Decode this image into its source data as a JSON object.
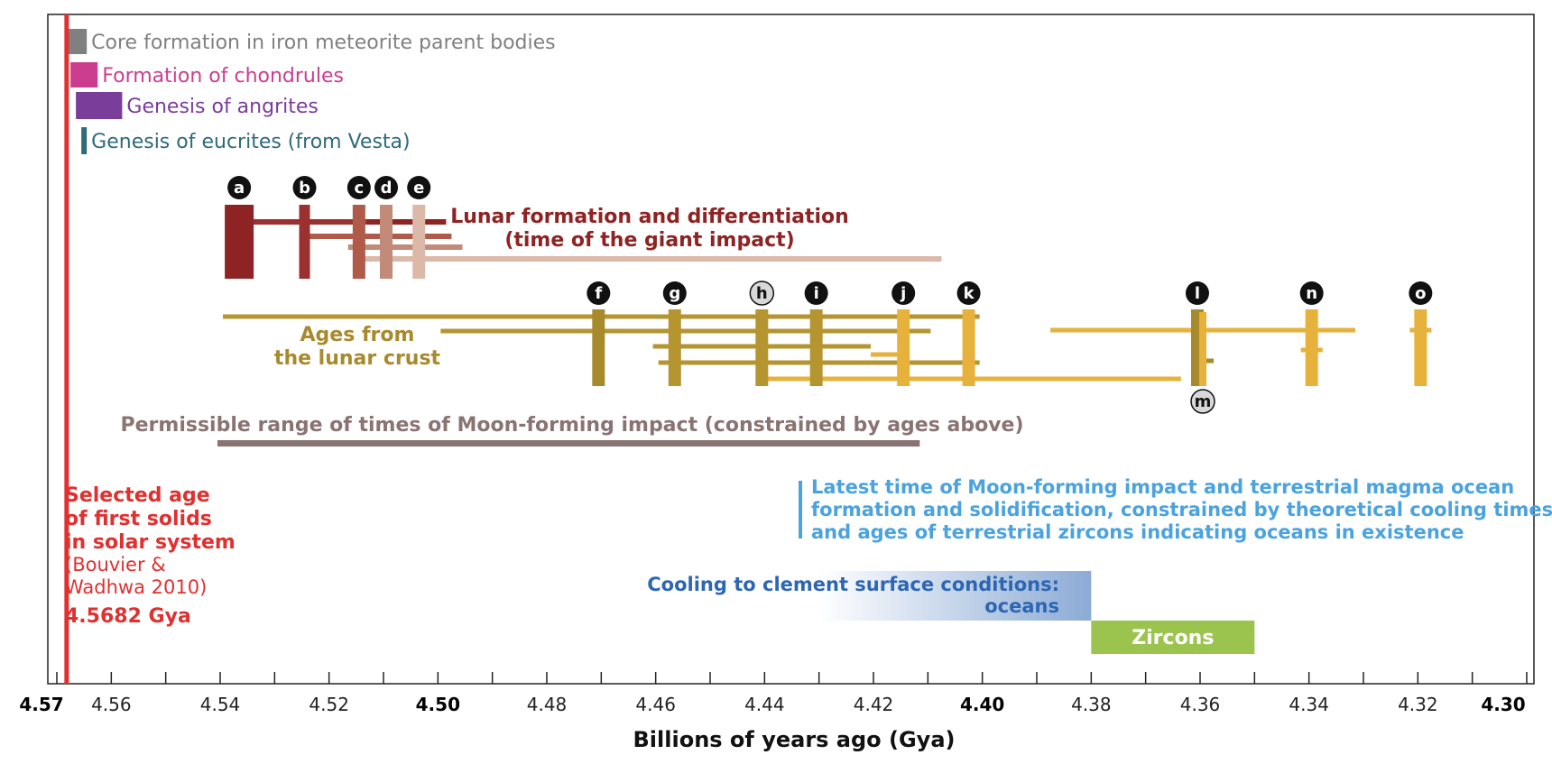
{
  "chart_data": {
    "type": "timeline",
    "xlabel": "Billions of years ago (Gya)",
    "xlim": [
      4.57,
      4.3
    ],
    "ticks": [
      "4.57",
      "4.56",
      "4.54",
      "4.52",
      "4.50",
      "4.48",
      "4.46",
      "4.44",
      "4.42",
      "4.40",
      "4.38",
      "4.36",
      "4.34",
      "4.32",
      "4.30"
    ],
    "bold_ticks": [
      "4.57",
      "4.50",
      "4.40",
      "4.30"
    ],
    "early_events": [
      {
        "label": "Core formation in iron meteorite parent bodies",
        "start": 4.5682,
        "end": 4.5645,
        "color": "#808080"
      },
      {
        "label": "Formation of chondrules",
        "start": 4.5675,
        "end": 4.5625,
        "color": "#cc3d8f"
      },
      {
        "label": "Genesis of angrites",
        "start": 4.5665,
        "end": 4.558,
        "color": "#7a3d99"
      },
      {
        "label": "Genesis of eucrites (from Vesta)",
        "start": 4.5655,
        "end": 4.5645,
        "color": "#2e6b7a"
      }
    ],
    "lunar_formation": {
      "title_line1": "Lunar formation and differentiation",
      "title_line2": "(time of the giant impact)",
      "markers": [
        {
          "id": "a",
          "age": 4.5365,
          "color": "#8e2323",
          "range": [
            4.5255,
            4.4985
          ]
        },
        {
          "id": "b",
          "age": 4.5245,
          "color": "#9a3030",
          "range": [
            4.5365,
            4.513
          ]
        },
        {
          "id": "c",
          "age": 4.5145,
          "color": "#b05a4a",
          "range": [
            4.5245,
            4.4975
          ]
        },
        {
          "id": "d",
          "age": 4.5095,
          "color": "#c28a78",
          "range": [
            4.5165,
            4.4955
          ]
        },
        {
          "id": "e",
          "age": 4.5035,
          "color": "#dcb8a8",
          "range": [
            4.5145,
            4.4075
          ]
        }
      ]
    },
    "lunar_crust": {
      "title_line1": "Ages from",
      "title_line2": "the lunar crust",
      "markers": [
        {
          "id": "f",
          "age": 4.4705,
          "color": "#a88a2e"
        },
        {
          "id": "g",
          "age": 4.4565,
          "color": "#b59530"
        },
        {
          "id": "h",
          "age": 4.4405,
          "color": "#b59530"
        },
        {
          "id": "i",
          "age": 4.4305,
          "color": "#b59530"
        },
        {
          "id": "j",
          "age": 4.4145,
          "color": "#e6b23c"
        },
        {
          "id": "k",
          "age": 4.4025,
          "color": "#e6b23c"
        },
        {
          "id": "l",
          "age": 4.3605,
          "color": "#a88a2e"
        },
        {
          "id": "m",
          "age": 4.3595,
          "color": "#e6b23c"
        },
        {
          "id": "n",
          "age": 4.3395,
          "color": "#e6b23c"
        },
        {
          "id": "o",
          "age": 4.3195,
          "color": "#e6b23c"
        }
      ],
      "ranges": [
        {
          "from": 4.5395,
          "to": 4.4005,
          "color": "#b59530"
        },
        {
          "from": 4.4995,
          "to": 4.4095,
          "color": "#b59530"
        },
        {
          "from": 4.4605,
          "to": 4.4205,
          "color": "#b59530"
        },
        {
          "from": 4.4595,
          "to": 4.4005,
          "color": "#b59530"
        },
        {
          "from": 4.4205,
          "to": 4.4135,
          "color": "#e6b23c"
        },
        {
          "from": 4.4415,
          "to": 4.3635,
          "color": "#e6b23c"
        },
        {
          "from": 4.3875,
          "to": 4.3315,
          "color": "#e6b23c"
        },
        {
          "from": 4.3615,
          "to": 4.3575,
          "color": "#a88a2e"
        },
        {
          "from": 4.3415,
          "to": 4.3375,
          "color": "#e6b23c"
        },
        {
          "from": 4.3215,
          "to": 4.3175,
          "color": "#e6b23c"
        }
      ]
    },
    "permissible_range": {
      "label": "Permissible range of times of Moon-forming impact (constrained by ages above)",
      "from": 4.5405,
      "to": 4.4115,
      "color": "#8a7373"
    },
    "latest_time": {
      "line1": "Latest time of Moon-forming impact and terrestrial magma ocean",
      "line2": "formation and solidification, constrained by theoretical cooling times",
      "line3": "and ages of terrestrial zircons indicating oceans in existence",
      "color": "#4aa3df"
    },
    "cooling": {
      "line1": "Cooling to clement surface conditions:",
      "line2": "oceans",
      "from": 4.43,
      "to": 4.38,
      "color": "#2d66b3"
    },
    "zircons": {
      "label": "Zircons",
      "from": 4.38,
      "to": 4.35,
      "color": "#9bc44f"
    },
    "selected_age": {
      "age": 4.5682,
      "line1": "Selected age",
      "line2": "of first solids",
      "line3": "in solar system",
      "line4": "(Bouvier &",
      "line5": "Wadhwa 2010)",
      "value": "4.5682 Gya",
      "color": "#e03030"
    }
  }
}
